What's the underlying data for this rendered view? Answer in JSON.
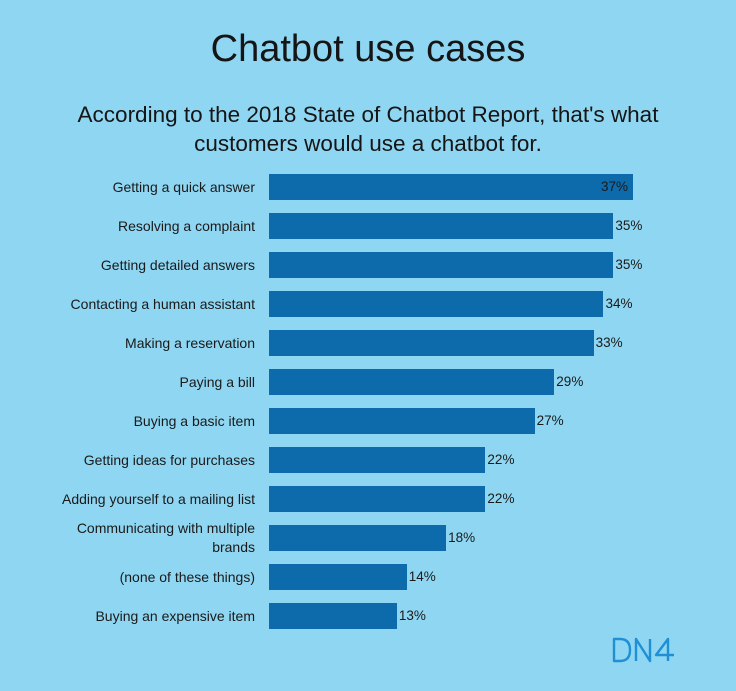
{
  "title": "Chatbot use cases",
  "subtitle": "According to the 2018 State of Chatbot Report, that's what customers would use a chatbot for.",
  "logo": {
    "text": "DN4",
    "color": "#1f8fd6"
  },
  "colors": {
    "background": "#8fd6f2",
    "bar": "#0d6aab"
  },
  "chart_data": {
    "type": "bar",
    "orientation": "horizontal",
    "categories": [
      "Getting a quick answer",
      "Resolving a complaint",
      "Getting detailed answers",
      "Contacting a human assistant",
      "Making a reservation",
      "Paying a bill",
      "Buying a basic item",
      "Getting ideas for purchases",
      "Adding yourself to a mailing list",
      "Communicating with multiple brands",
      "(none of these things)",
      "Buying an expensive item"
    ],
    "values": [
      37,
      35,
      35,
      34,
      33,
      29,
      27,
      22,
      22,
      18,
      14,
      13
    ],
    "value_labels": [
      "37%",
      "35%",
      "35%",
      "34%",
      "33%",
      "29%",
      "27%",
      "22%",
      "22%",
      "18%",
      "14%",
      "13%"
    ],
    "xlim": [
      0,
      37
    ],
    "grid": false,
    "legend": "none"
  }
}
